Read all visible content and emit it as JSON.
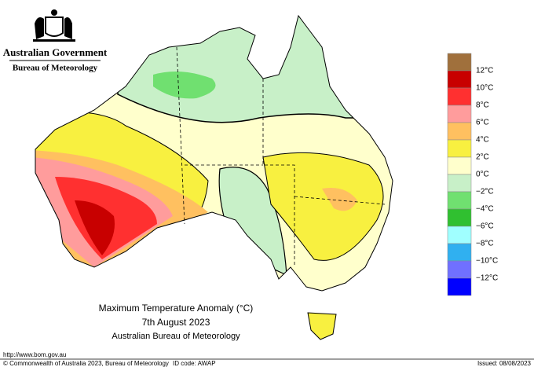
{
  "header": {
    "government": "Australian Government",
    "agency": "Bureau of Meteorology"
  },
  "map": {
    "title": "Maximum Temperature Anomaly (°C)",
    "date": "7th August 2023",
    "source": "Australian Bureau of Meteorology"
  },
  "legend": {
    "colors": [
      "#a0703c",
      "#c80000",
      "#ff3030",
      "#ff9c9c",
      "#ffc060",
      "#f8f040",
      "#ffffcc",
      "#c8f0c8",
      "#70e070",
      "#30c030",
      "#a0ffff",
      "#30b0f0",
      "#7070ff",
      "#0000ff"
    ],
    "labels": [
      "12°C",
      "10°C",
      "8°C",
      "6°C",
      "4°C",
      "2°C",
      "0°C",
      "−2°C",
      "−4°C",
      "−6°C",
      "−8°C",
      "−10°C",
      "−12°C"
    ]
  },
  "footer": {
    "url": "http://www.bom.gov.au",
    "copyright": "© Commonwealth of Australia 2023, Bureau of Meteorology",
    "id_code": "ID code: AWAP",
    "issued": "Issued: 08/08/2023"
  }
}
